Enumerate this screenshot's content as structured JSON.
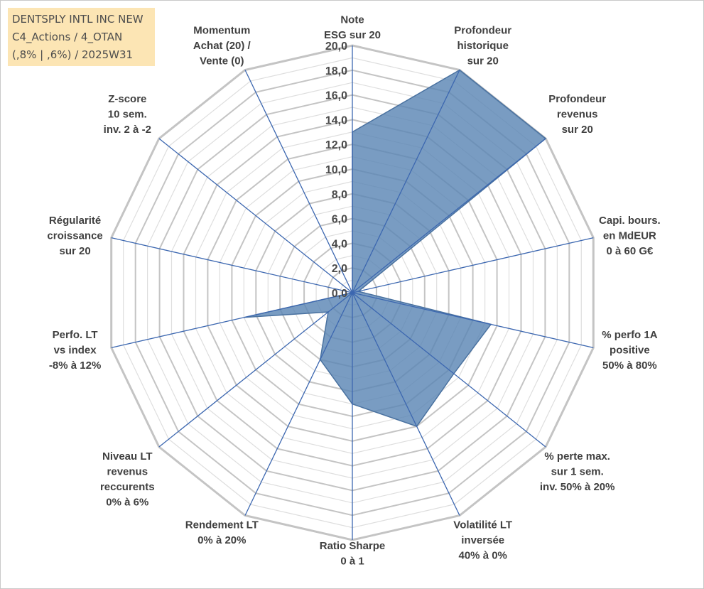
{
  "title_box": {
    "lines": [
      "DENTSPLY INTL INC NEW",
      "C4_Actions / 4_OTAN",
      "(,8% | ,6%) / 2025W31"
    ]
  },
  "chart_data": {
    "type": "radar",
    "title": "DENTSPLY INTL INC NEW C4_Actions / 4_OTAN (,8% | ,6%) / 2025W31",
    "rlim": [
      0,
      20
    ],
    "tick_step": 2,
    "tick_labels": [
      "0,0",
      "2,0",
      "4,0",
      "6,0",
      "8,0",
      "10,0",
      "12,0",
      "14,0",
      "16,0",
      "18,0",
      "20,0"
    ],
    "grid": true,
    "axes": [
      {
        "label": [
          "Note",
          "ESG sur 20"
        ],
        "value": 13.0
      },
      {
        "label": [
          "Profondeur",
          "historique",
          "sur 20"
        ],
        "value": 20.0
      },
      {
        "label": [
          "Profondeur",
          "revenus",
          "sur 20"
        ],
        "value": 20.0
      },
      {
        "label": [
          "Capi. bours.",
          "en MdEUR",
          "0 à 60 G€"
        ],
        "value": 0.5
      },
      {
        "label": [
          "% perfo 1A",
          "positive",
          "50% à 80%"
        ],
        "value": 11.5
      },
      {
        "label": [
          "% perte max.",
          "sur 1 sem.",
          "inv. 50% à 20%"
        ],
        "value": 10.5
      },
      {
        "label": [
          "Volatilité LT",
          "inversée",
          "40% à 0%"
        ],
        "value": 12.0
      },
      {
        "label": [
          "Ratio Sharpe",
          "0 à 1"
        ],
        "value": 9.0
      },
      {
        "label": [
          "Rendement LT",
          "0% à 20%"
        ],
        "value": 6.0
      },
      {
        "label": [
          "Niveau LT",
          "revenus",
          "reccurents",
          "0% à 6%"
        ],
        "value": 2.5
      },
      {
        "label": [
          "Perfo. LT",
          "vs index",
          "-8% à 12%"
        ],
        "value": 9.0
      },
      {
        "label": [
          "Régularité",
          "croissance",
          "sur 20"
        ],
        "value": 0.0
      },
      {
        "label": [
          "Z-score",
          "10 sem.",
          "inv. 2 à -2"
        ],
        "value": 0.0
      },
      {
        "label": [
          "Momentum",
          "Achat (20) /",
          "Vente (0)"
        ],
        "value": 0.0
      }
    ],
    "colors": {
      "fill": "#5b86b4",
      "stroke": "#4a72a0",
      "spoke": "#3c67b0",
      "grid": "#c4c4c4",
      "grid_minor": "#dedede"
    }
  }
}
